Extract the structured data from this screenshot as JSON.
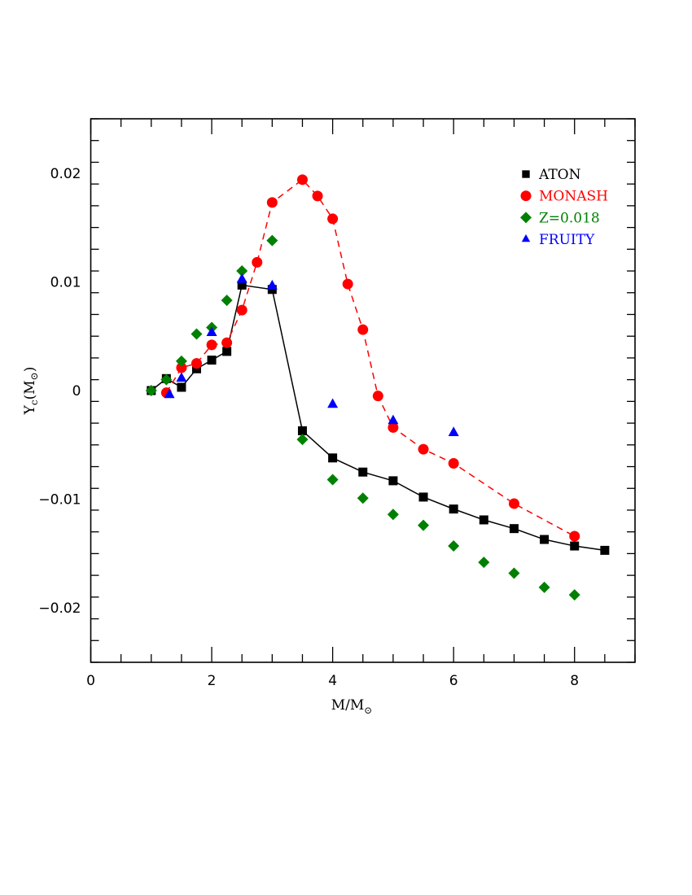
{
  "chart_data": {
    "type": "scatter",
    "title": "",
    "xlabel": "M/M⊙",
    "ylabel": "Y_c(M⊙)",
    "xlim": [
      0,
      9
    ],
    "ylim": [
      -0.025,
      0.025
    ],
    "xticks": [
      0,
      2,
      4,
      6,
      8
    ],
    "xtick_labels": [
      "0",
      "2",
      "4",
      "6",
      "8"
    ],
    "x_minor_step": 0.5,
    "yticks": [
      -0.02,
      -0.01,
      0,
      0.01,
      0.02
    ],
    "ytick_labels": [
      "−0.02",
      "−0.01",
      "0",
      "0.01",
      "0.02"
    ],
    "y_minor_step": 0.002,
    "grid": false,
    "legend_position": "upper right",
    "series": [
      {
        "name": "ATON",
        "color": "#000000",
        "marker": "square",
        "line": "solid",
        "x": [
          1,
          1.25,
          1.5,
          1.75,
          2,
          2.25,
          2.5,
          3,
          3.5,
          4,
          4.5,
          5,
          5.5,
          6,
          6.5,
          7,
          7.5,
          8,
          8.5
        ],
        "y": [
          0.0,
          0.0011,
          0.0003,
          0.002,
          0.0028,
          0.0036,
          0.0097,
          0.0093,
          -0.0037,
          -0.0062,
          -0.0075,
          -0.0083,
          -0.0098,
          -0.0109,
          -0.0119,
          -0.0127,
          -0.0137,
          -0.0143,
          -0.0147
        ]
      },
      {
        "name": "MONASH",
        "color": "#ff0000",
        "marker": "circle",
        "line": "dashed",
        "x": [
          1.25,
          1.5,
          1.75,
          2,
          2.25,
          2.5,
          2.75,
          3,
          3.5,
          3.75,
          4,
          4.25,
          4.5,
          4.75,
          5,
          5.5,
          6,
          7,
          8
        ],
        "y": [
          -0.0002,
          0.0021,
          0.0025,
          0.0042,
          0.0044,
          0.0074,
          0.0118,
          0.0173,
          0.0194,
          0.0179,
          0.0158,
          0.0098,
          0.0056,
          -0.0005,
          -0.0034,
          -0.0054,
          -0.0067,
          -0.0104,
          -0.0134
        ]
      },
      {
        "name": "Z=0.018",
        "color": "#008000",
        "marker": "diamond",
        "line": "none",
        "x": [
          1,
          1.25,
          1.5,
          1.75,
          2,
          2.25,
          2.5,
          3,
          3.5,
          4,
          4.5,
          5,
          5.5,
          6,
          6.5,
          7,
          7.5,
          8
        ],
        "y": [
          0.0,
          0.001,
          0.0027,
          0.0052,
          0.0058,
          0.0083,
          0.011,
          0.0138,
          -0.0045,
          -0.0082,
          -0.0099,
          -0.0114,
          -0.0124,
          -0.0143,
          -0.0158,
          -0.0168,
          -0.0181,
          -0.0188
        ]
      },
      {
        "name": "FRUITY",
        "color": "#0000ff",
        "marker": "triangle",
        "line": "none",
        "x": [
          1.3,
          1.5,
          2,
          2.5,
          3,
          4,
          5,
          6
        ],
        "y": [
          -0.0003,
          0.0012,
          0.0054,
          0.0103,
          0.0097,
          -0.0012,
          -0.0027,
          -0.0038
        ]
      }
    ]
  },
  "legend": {
    "items": [
      {
        "label": "ATON",
        "color": "#000000",
        "marker": "square"
      },
      {
        "label": "MONASH",
        "color": "#ff0000",
        "marker": "circle"
      },
      {
        "label": "Z=0.018",
        "color": "#008000",
        "marker": "diamond"
      },
      {
        "label": "FRUITY",
        "color": "#0000ff",
        "marker": "triangle"
      }
    ]
  },
  "axes": {
    "x_label_main": "M/M",
    "x_label_sub": "⊙",
    "y_label_main": "Y",
    "y_label_sub": "c",
    "y_label_rest": "(M",
    "y_label_sun": "⊙",
    "y_label_close": ")"
  }
}
